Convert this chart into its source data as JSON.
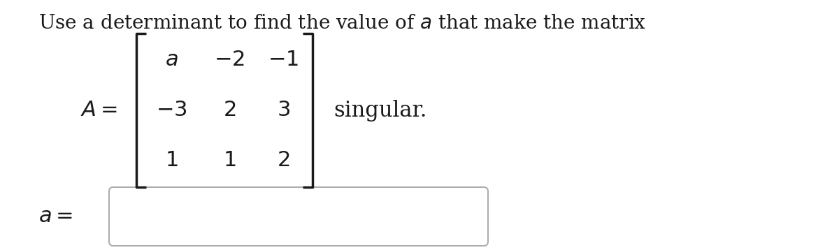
{
  "bg_color": "#ffffff",
  "title_text": "Use a determinant to find the value of $a$ that make the matrix",
  "title_fontsize": 20,
  "matrix_rows": [
    [
      "$a$",
      "$-2$",
      "$-1$"
    ],
    [
      "$-3$",
      "$2$",
      "$3$"
    ],
    [
      "$1$",
      "$1$",
      "$2$"
    ]
  ],
  "A_label": "$A =$",
  "singular_text": "singular.",
  "a_eq_text": "$a =$",
  "font_color": "#1a1a1a",
  "matrix_fontsize": 22,
  "label_fontsize": 22,
  "singular_fontsize": 22,
  "bracket_color": "#1a1a1a",
  "bracket_lw": 2.5,
  "box_edgecolor": "#aaaaaa",
  "box_facecolor": "#ffffff",
  "fig_width": 12.0,
  "fig_height": 3.58,
  "dpi": 100
}
